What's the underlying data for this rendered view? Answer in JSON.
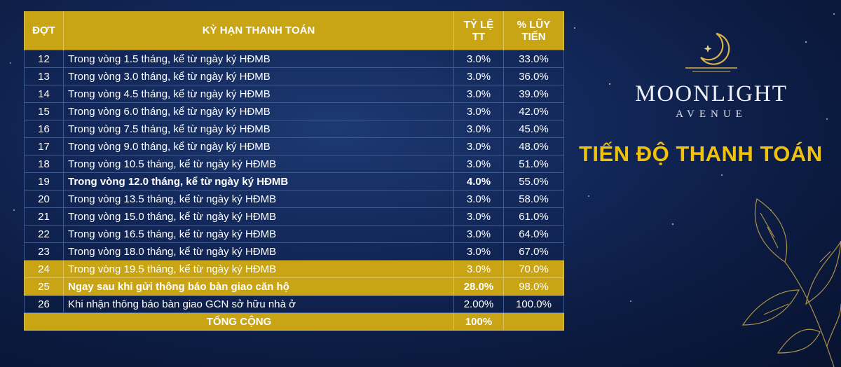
{
  "table": {
    "headers": [
      "ĐỢT",
      "KỲ HẠN THANH TOÁN",
      "TỶ LỆ TT",
      "% LŨY TIẾN"
    ],
    "rows": [
      {
        "dot": "12",
        "term": "Trong vòng 1.5 tháng, kể từ ngày ký HĐMB",
        "rate": "3.0%",
        "cum": "33.0%"
      },
      {
        "dot": "13",
        "term": "Trong vòng 3.0 tháng, kể từ ngày ký HĐMB",
        "rate": "3.0%",
        "cum": "36.0%"
      },
      {
        "dot": "14",
        "term": "Trong vòng 4.5 tháng, kể từ ngày ký HĐMB",
        "rate": "3.0%",
        "cum": "39.0%"
      },
      {
        "dot": "15",
        "term": "Trong vòng 6.0 tháng, kể từ ngày ký HĐMB",
        "rate": "3.0%",
        "cum": "42.0%"
      },
      {
        "dot": "16",
        "term": "Trong vòng 7.5 tháng, kể từ ngày ký HĐMB",
        "rate": "3.0%",
        "cum": "45.0%"
      },
      {
        "dot": "17",
        "term": "Trong vòng 9.0 tháng, kể từ ngày ký HĐMB",
        "rate": "3.0%",
        "cum": "48.0%"
      },
      {
        "dot": "18",
        "term": "Trong vòng 10.5 tháng, kể từ ngày ký HĐMB",
        "rate": "3.0%",
        "cum": "51.0%"
      },
      {
        "dot": "19",
        "term": "Trong vòng 12.0 tháng, kể từ ngày ký HĐMB",
        "rate": "4.0%",
        "cum": "55.0%"
      },
      {
        "dot": "20",
        "term": "Trong vòng 13.5 tháng, kể từ ngày ký HĐMB",
        "rate": "3.0%",
        "cum": "58.0%"
      },
      {
        "dot": "21",
        "term": "Trong vòng 15.0 tháng, kể từ ngày ký HĐMB",
        "rate": "3.0%",
        "cum": "61.0%"
      },
      {
        "dot": "22",
        "term": "Trong vòng 16.5 tháng, kể từ ngày ký HĐMB",
        "rate": "3.0%",
        "cum": "64.0%"
      },
      {
        "dot": "23",
        "term": "Trong vòng 18.0 tháng, kể từ ngày ký HĐMB",
        "rate": "3.0%",
        "cum": "67.0%"
      },
      {
        "dot": "24",
        "term": "Trong vòng 19.5 tháng, kể từ ngày ký HĐMB",
        "rate": "3.0%",
        "cum": "70.0%"
      },
      {
        "dot": "25",
        "term": "Ngay sau khi gửi thông báo bàn giao căn hộ",
        "rate": "28.0%",
        "cum": "98.0%"
      },
      {
        "dot": "26",
        "term": "Khi nhận thông báo bàn giao GCN sở hữu nhà ở",
        "rate": "2.00%",
        "cum": "100.0%"
      }
    ],
    "total_label": "TỔNG CỘNG",
    "total_value": "100%"
  },
  "brand": {
    "line1": "MOONLIGHT",
    "line2": "AVENUE",
    "logo_icon": "crescent-moon-star-icon"
  },
  "page_title": "TIẾN ĐỘ THANH TOÁN",
  "colors": {
    "gold": "#c9a415",
    "title_yellow": "#f0c20c",
    "navy": "#0b1a3f"
  }
}
